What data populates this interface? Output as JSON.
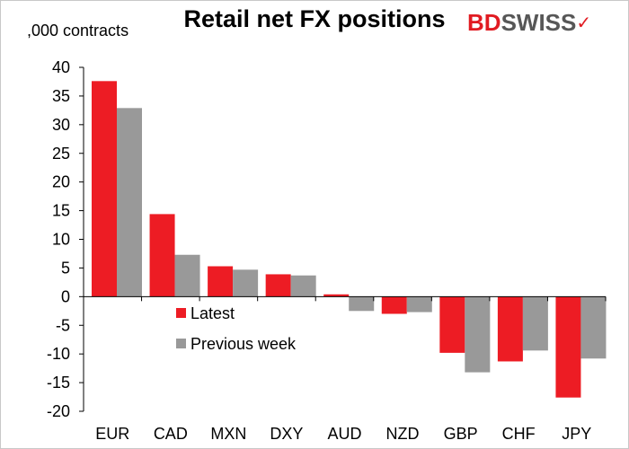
{
  "chart_data": {
    "type": "bar",
    "title": "Retail net FX positions",
    "ylabel": ",000 contracts",
    "xlabel": "",
    "categories": [
      "EUR",
      "CAD",
      "MXN",
      "DXY",
      "AUD",
      "NZD",
      "GBP",
      "CHF",
      "JPY"
    ],
    "series": [
      {
        "name": "Latest",
        "color": "#ed1c24",
        "values": [
          37.6,
          14.4,
          5.3,
          3.9,
          0.4,
          -3.0,
          -9.8,
          -11.3,
          -17.6
        ]
      },
      {
        "name": "Previous week",
        "color": "#999999",
        "values": [
          32.9,
          7.3,
          4.7,
          3.7,
          -2.5,
          -2.7,
          -13.2,
          -9.4,
          -10.8
        ]
      }
    ],
    "ylim": [
      -20,
      40
    ],
    "yticks": [
      40,
      35,
      30,
      25,
      20,
      15,
      10,
      5,
      0,
      -5,
      -10,
      -15,
      -20
    ],
    "grid": false,
    "legend_position": "lower-center"
  },
  "brand": {
    "logo_part1": "BD",
    "logo_part2": "SWISS",
    "logo_mark": "✓"
  }
}
